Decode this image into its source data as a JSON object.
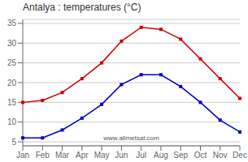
{
  "chart_data": {
    "type": "line",
    "title": "Antalya : temperatures (°C)",
    "categories": [
      "Jan",
      "Feb",
      "Mar",
      "Apr",
      "May",
      "Jun",
      "Jul",
      "Aug",
      "Sep",
      "Oct",
      "Nov",
      "Dec"
    ],
    "series": [
      {
        "color": "#cc0000",
        "marker": "square",
        "values": [
          15,
          15.5,
          17.5,
          21,
          25,
          30.5,
          34,
          33.5,
          31,
          26,
          21,
          16
        ]
      },
      {
        "color": "#0000cc",
        "marker": "square",
        "values": [
          6,
          6,
          8,
          11,
          14.5,
          19.5,
          22,
          22,
          19,
          15,
          10.5,
          7.5
        ]
      }
    ],
    "ylim": [
      4,
      36
    ],
    "yticks": [
      5,
      10,
      15,
      20,
      25,
      30,
      35
    ],
    "grid": "y",
    "annotations": [
      "www.allmetsat.com"
    ]
  }
}
